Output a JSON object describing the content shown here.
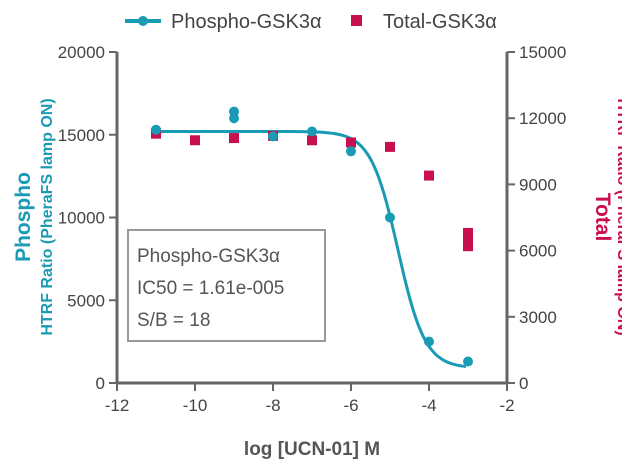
{
  "chart_data": {
    "type": "scatter",
    "xlabel": "log [UCN-01] M",
    "xlim": [
      -12,
      -2
    ],
    "xticks": [
      "-12",
      "-10",
      "-8",
      "-6",
      "-4",
      "-2"
    ],
    "ylabel_left": [
      "Phospho",
      "HTRF Ratio (PheraFS lamp ON)"
    ],
    "ylim_left": [
      0,
      20000
    ],
    "yticks_left": [
      "0",
      "5000",
      "10000",
      "15000",
      "20000"
    ],
    "ylabel_right": [
      "Total",
      "HTRF Ratio (PheraFS lamp ON)"
    ],
    "ylim_right": [
      0,
      15000
    ],
    "yticks_right": [
      "0",
      "3000",
      "6000",
      "9000",
      "12000",
      "15000"
    ],
    "legend": {
      "placement": "top-center"
    },
    "series": [
      {
        "name": "Phospho-GSK3α",
        "axis": "left",
        "color": "#1a9bb5",
        "marker": "circle",
        "fit": "sigmoid",
        "x": [
          -11,
          -9,
          -9,
          -8,
          -7,
          -6,
          -5,
          -4,
          -3
        ],
        "y": [
          15300,
          16400,
          16000,
          14900,
          15200,
          14000,
          10000,
          2500,
          1300
        ]
      },
      {
        "name": "Total-GSK3α",
        "axis": "right",
        "color": "#c8104e",
        "marker": "square",
        "x": [
          -11,
          -10,
          -9,
          -8,
          -7,
          -6,
          -5,
          -4,
          -3,
          -3,
          -3
        ],
        "y": [
          11300,
          11000,
          11100,
          11200,
          11000,
          10900,
          10700,
          9400,
          6800,
          6400,
          6200
        ]
      }
    ],
    "fit_params": {
      "top": 15200,
      "bottom": 900,
      "logIC50": -4.7959,
      "hill": 1.25
    },
    "annotation": {
      "lines": [
        "Phospho-GSK3α",
        "IC50 = 1.61e-005",
        "S/B = 18"
      ]
    }
  }
}
